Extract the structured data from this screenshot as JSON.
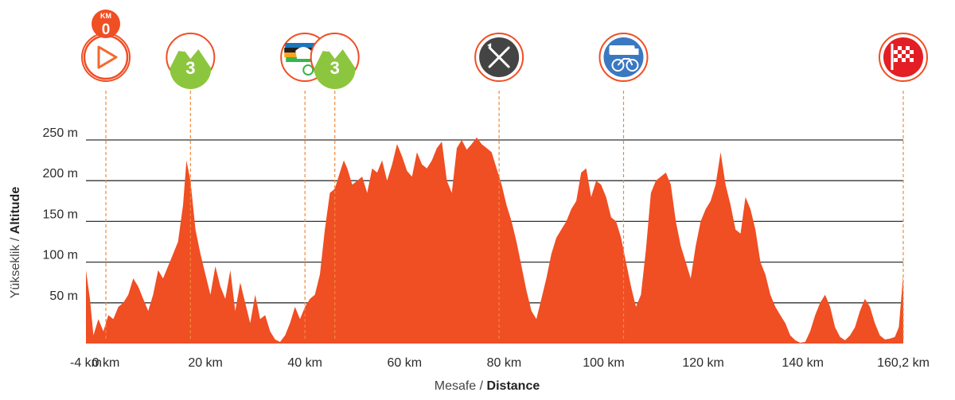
{
  "chart_data": {
    "type": "area",
    "xlabel_normal": "Mesafe",
    "xlabel_bold": "Distance",
    "ylabel_normal": "Yükseklik",
    "ylabel_bold": "Altitude",
    "x_range_km": [
      -4,
      160.2
    ],
    "y_range_m": [
      0,
      250
    ],
    "grid": true,
    "fill_color": "#f04e23",
    "grid_color": "#333333",
    "marker_line_color": "#f08a3c",
    "yticks": [
      {
        "value": 50,
        "label": "50 m"
      },
      {
        "value": 100,
        "label": "100 m"
      },
      {
        "value": 150,
        "label": "150 m"
      },
      {
        "value": 200,
        "label": "200 m"
      },
      {
        "value": 250,
        "label": "250 m"
      }
    ],
    "xticks": [
      {
        "value": -4,
        "label": "-4 km"
      },
      {
        "value": 0,
        "label": "0 km"
      },
      {
        "value": 20,
        "label": "20 km"
      },
      {
        "value": 40,
        "label": "40 km"
      },
      {
        "value": 60,
        "label": "60 km"
      },
      {
        "value": 80,
        "label": "80 km"
      },
      {
        "value": 100,
        "label": "100 km"
      },
      {
        "value": 120,
        "label": "120 km"
      },
      {
        "value": 140,
        "label": "140 km"
      },
      {
        "value": 160.2,
        "label": "160,2 km"
      }
    ],
    "profile": [
      [
        -4,
        90
      ],
      [
        -3.2,
        55
      ],
      [
        -2.5,
        10
      ],
      [
        -1.5,
        30
      ],
      [
        -0.5,
        15
      ],
      [
        0.5,
        35
      ],
      [
        1.5,
        30
      ],
      [
        2.5,
        45
      ],
      [
        3.5,
        50
      ],
      [
        4.5,
        60
      ],
      [
        5.5,
        80
      ],
      [
        6.5,
        70
      ],
      [
        7.5,
        55
      ],
      [
        8.5,
        40
      ],
      [
        9.5,
        60
      ],
      [
        10.5,
        90
      ],
      [
        11.5,
        80
      ],
      [
        12.5,
        95
      ],
      [
        13.5,
        110
      ],
      [
        14.5,
        125
      ],
      [
        15.5,
        170
      ],
      [
        16.2,
        225
      ],
      [
        17,
        200
      ],
      [
        18,
        140
      ],
      [
        19,
        110
      ],
      [
        20,
        85
      ],
      [
        21,
        60
      ],
      [
        22,
        95
      ],
      [
        23,
        70
      ],
      [
        24,
        55
      ],
      [
        25,
        90
      ],
      [
        26,
        40
      ],
      [
        27,
        75
      ],
      [
        28,
        50
      ],
      [
        29,
        25
      ],
      [
        30,
        60
      ],
      [
        31,
        30
      ],
      [
        32,
        35
      ],
      [
        33,
        15
      ],
      [
        34,
        5
      ],
      [
        35,
        2
      ],
      [
        36,
        10
      ],
      [
        37,
        25
      ],
      [
        38,
        45
      ],
      [
        39,
        30
      ],
      [
        40,
        45
      ],
      [
        41,
        55
      ],
      [
        42,
        60
      ],
      [
        43,
        85
      ],
      [
        44,
        140
      ],
      [
        45,
        185
      ],
      [
        46,
        190
      ],
      [
        47,
        210
      ],
      [
        47.8,
        225
      ],
      [
        48.5,
        215
      ],
      [
        49.5,
        195
      ],
      [
        50.5,
        200
      ],
      [
        51.5,
        205
      ],
      [
        52.5,
        185
      ],
      [
        53.5,
        215
      ],
      [
        54.5,
        210
      ],
      [
        55.5,
        225
      ],
      [
        56.5,
        200
      ],
      [
        57.5,
        220
      ],
      [
        58.5,
        245
      ],
      [
        59.5,
        230
      ],
      [
        60.5,
        212
      ],
      [
        61.5,
        205
      ],
      [
        62.5,
        235
      ],
      [
        63.5,
        220
      ],
      [
        64.5,
        215
      ],
      [
        65.5,
        225
      ],
      [
        66.5,
        240
      ],
      [
        67.5,
        248
      ],
      [
        68.5,
        200
      ],
      [
        69.5,
        185
      ],
      [
        70.5,
        240
      ],
      [
        71.5,
        250
      ],
      [
        72.5,
        238
      ],
      [
        73.5,
        245
      ],
      [
        74.5,
        253
      ],
      [
        75.5,
        245
      ],
      [
        76.5,
        240
      ],
      [
        77.5,
        235
      ],
      [
        78.5,
        215
      ],
      [
        79.5,
        195
      ],
      [
        80.5,
        170
      ],
      [
        81.5,
        150
      ],
      [
        82.5,
        125
      ],
      [
        83.5,
        95
      ],
      [
        84.5,
        65
      ],
      [
        85.5,
        40
      ],
      [
        86.5,
        30
      ],
      [
        87.5,
        55
      ],
      [
        88.5,
        80
      ],
      [
        89.5,
        110
      ],
      [
        90.5,
        130
      ],
      [
        91.5,
        140
      ],
      [
        92.5,
        150
      ],
      [
        93.5,
        165
      ],
      [
        94.5,
        175
      ],
      [
        95.5,
        210
      ],
      [
        96.5,
        215
      ],
      [
        97.5,
        180
      ],
      [
        98.5,
        200
      ],
      [
        99.5,
        195
      ],
      [
        100.5,
        180
      ],
      [
        101.5,
        155
      ],
      [
        102.5,
        150
      ],
      [
        103.5,
        130
      ],
      [
        104.5,
        100
      ],
      [
        105.5,
        70
      ],
      [
        106.5,
        45
      ],
      [
        107.5,
        60
      ],
      [
        108.5,
        115
      ],
      [
        109.5,
        185
      ],
      [
        110.5,
        200
      ],
      [
        111.5,
        205
      ],
      [
        112.5,
        210
      ],
      [
        113.5,
        195
      ],
      [
        114.5,
        150
      ],
      [
        115.5,
        120
      ],
      [
        116.5,
        100
      ],
      [
        117.5,
        80
      ],
      [
        118.5,
        120
      ],
      [
        119.5,
        150
      ],
      [
        120.5,
        165
      ],
      [
        121.5,
        175
      ],
      [
        122.5,
        195
      ],
      [
        123.5,
        235
      ],
      [
        124.5,
        195
      ],
      [
        125.5,
        170
      ],
      [
        126.5,
        140
      ],
      [
        127.5,
        135
      ],
      [
        128.5,
        180
      ],
      [
        129.5,
        165
      ],
      [
        130.5,
        140
      ],
      [
        131.5,
        100
      ],
      [
        132.5,
        85
      ],
      [
        133.5,
        60
      ],
      [
        134.5,
        45
      ],
      [
        135.5,
        35
      ],
      [
        136.5,
        25
      ],
      [
        137.5,
        10
      ],
      [
        138.5,
        4
      ],
      [
        139.5,
        1
      ],
      [
        140.5,
        2
      ],
      [
        141.5,
        15
      ],
      [
        142.5,
        35
      ],
      [
        143.5,
        50
      ],
      [
        144.5,
        60
      ],
      [
        145.5,
        45
      ],
      [
        146.5,
        20
      ],
      [
        147.5,
        8
      ],
      [
        148.5,
        4
      ],
      [
        149.5,
        10
      ],
      [
        150.5,
        20
      ],
      [
        151.5,
        40
      ],
      [
        152.5,
        55
      ],
      [
        153.5,
        45
      ],
      [
        154.5,
        25
      ],
      [
        155.5,
        10
      ],
      [
        156.5,
        5
      ],
      [
        157.5,
        6
      ],
      [
        158.5,
        8
      ],
      [
        159.3,
        20
      ],
      [
        160.2,
        85
      ]
    ],
    "markers": [
      {
        "km": 0,
        "icon": "start-play-icon",
        "badge_top": "KM",
        "badge_bottom": "0",
        "ring_color": "#f04e23",
        "fill_color": "#ffffff"
      },
      {
        "km": 17,
        "icon": "mountain-cat3-icon",
        "label": "3",
        "ring_color": "#f04e23",
        "fill_color": "#8cc63f"
      },
      {
        "km": 40,
        "icon": "intermediate-sprint-icon",
        "ring_color": "#f04e23",
        "fill_color": "#ffffff"
      },
      {
        "km": 46,
        "icon": "mountain-cat3-icon",
        "label": "3",
        "ring_color": "#f04e23",
        "fill_color": "#8cc63f"
      },
      {
        "km": 79,
        "icon": "feed-zone-icon",
        "ring_color": "#f04e23",
        "fill_color": "#444444"
      },
      {
        "km": 104,
        "icon": "technical-zone-icon",
        "ring_color": "#f04e23",
        "fill_color": "#3a78c2"
      },
      {
        "km": 160.2,
        "icon": "finish-flag-icon",
        "ring_color": "#f04e23",
        "fill_color": "#e31e24"
      }
    ]
  }
}
